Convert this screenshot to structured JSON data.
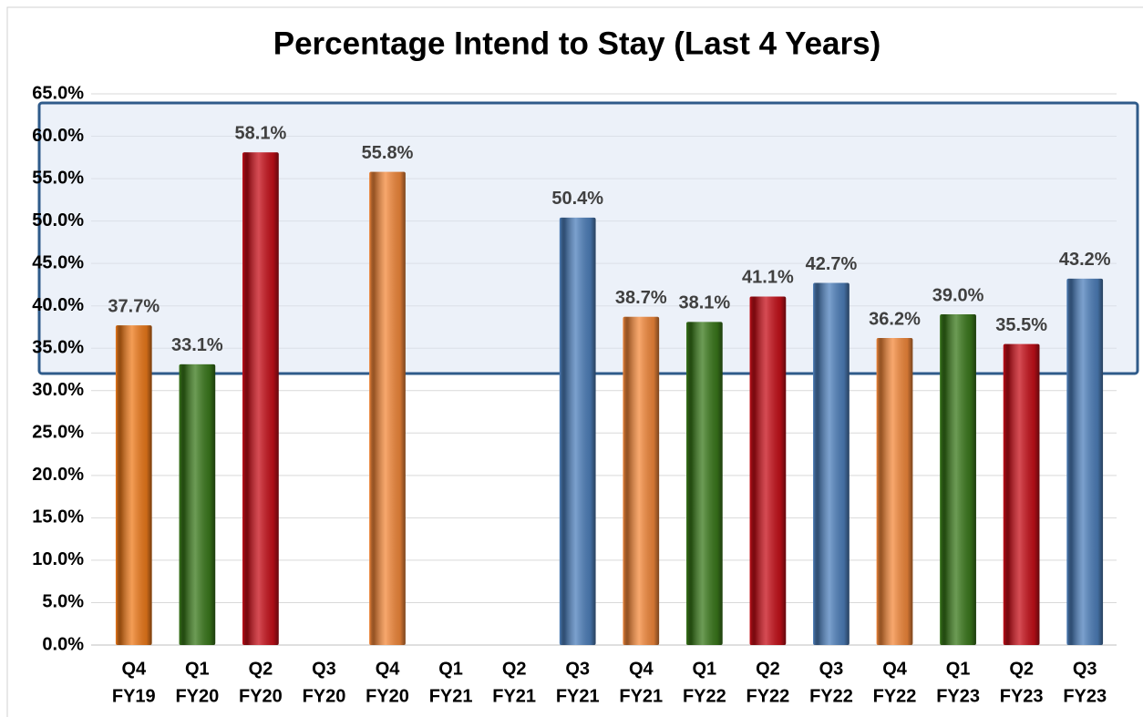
{
  "chart_data": {
    "type": "bar",
    "title": "Percentage Intend to Stay (Last 4  Years)",
    "categories": [
      [
        "Q4",
        "FY19"
      ],
      [
        "Q1",
        "FY20"
      ],
      [
        "Q2",
        "FY20"
      ],
      [
        "Q3",
        "FY20"
      ],
      [
        "Q4",
        "FY20"
      ],
      [
        "Q1",
        "FY21"
      ],
      [
        "Q2",
        "FY21"
      ],
      [
        "Q3",
        "FY21"
      ],
      [
        "Q4",
        "FY21"
      ],
      [
        "Q1",
        "FY22"
      ],
      [
        "Q2",
        "FY22"
      ],
      [
        "Q3",
        "FY22"
      ],
      [
        "Q4",
        "FY22"
      ],
      [
        "Q1",
        "FY23"
      ],
      [
        "Q2",
        "FY23"
      ],
      [
        "Q3",
        "FY23"
      ]
    ],
    "values": [
      37.7,
      33.1,
      58.1,
      null,
      55.8,
      null,
      null,
      50.4,
      38.7,
      38.1,
      41.1,
      42.7,
      36.2,
      39.0,
      35.5,
      43.2
    ],
    "value_labels": [
      "37.7%",
      "33.1%",
      "58.1%",
      null,
      "55.8%",
      null,
      null,
      "50.4%",
      "38.7%",
      "38.1%",
      "41.1%",
      "42.7%",
      "36.2%",
      "39.0%",
      "35.5%",
      "43.2%"
    ],
    "colors": [
      "#f07c1c",
      "#3b7a1c",
      "#c8101a",
      null,
      "#f58a3c",
      null,
      null,
      "#4f81bd",
      "#f58a3c",
      "#3b7a1c",
      "#c8101a",
      "#4f81bd",
      "#f58a3c",
      "#3b7a1c",
      "#c8101a",
      "#4f81bd"
    ],
    "ylim": [
      0,
      65
    ],
    "yticks": [
      {
        "value": 0,
        "label": "0.0%"
      },
      {
        "value": 5,
        "label": "5.0%"
      },
      {
        "value": 10,
        "label": "10.0%"
      },
      {
        "value": 15,
        "label": "15.0%"
      },
      {
        "value": 20,
        "label": "20.0%"
      },
      {
        "value": 25,
        "label": "25.0%"
      },
      {
        "value": 30,
        "label": "30.0%"
      },
      {
        "value": 35,
        "label": "35.0%"
      },
      {
        "value": 40,
        "label": "40.0%"
      },
      {
        "value": 45,
        "label": "45.0%"
      },
      {
        "value": 50,
        "label": "50.0%"
      },
      {
        "value": 55,
        "label": "55.0%"
      },
      {
        "value": 60,
        "label": "60.0%"
      },
      {
        "value": 65,
        "label": "65.0%"
      }
    ],
    "grid": true
  }
}
